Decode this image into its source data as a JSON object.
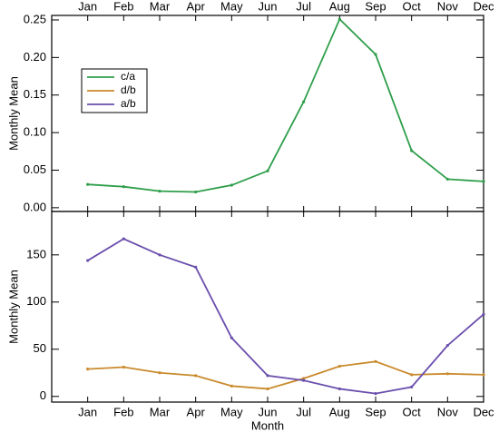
{
  "chart_data": [
    {
      "type": "line",
      "ylabel": "Monthly Mean",
      "categories": [
        "Jan",
        "Feb",
        "Mar",
        "Apr",
        "May",
        "Jun",
        "Jul",
        "Aug",
        "Sep",
        "Oct",
        "Nov",
        "Dec"
      ],
      "ylim": [
        -0.005,
        0.256
      ],
      "yticks": [
        {
          "value": 0,
          "label": "0.00"
        },
        0.05,
        {
          "value": 0.1,
          "label": "0.10"
        },
        0.15,
        {
          "value": 0.2,
          "label": "0.20"
        },
        0.25
      ],
      "legend": "upper left",
      "series": [
        {
          "name": "c/a",
          "color": "#2e9e4a",
          "values": [
            0.031,
            0.028,
            0.022,
            0.021,
            0.03,
            0.049,
            0.141,
            0.251,
            0.204,
            0.076,
            0.038,
            0.035
          ]
        }
      ]
    },
    {
      "type": "line",
      "ylabel": "Monthly Mean",
      "xlabel": "Month",
      "categories": [
        "Jan",
        "Feb",
        "Mar",
        "Apr",
        "May",
        "Jun",
        "Jul",
        "Aug",
        "Sep",
        "Oct",
        "Nov",
        "Dec"
      ],
      "ylim": [
        -6,
        196
      ],
      "yticks": [
        0,
        50,
        100,
        150
      ],
      "series": [
        {
          "name": "d/b",
          "color": "#c98a2c",
          "values": [
            29,
            31,
            25,
            22,
            11,
            8,
            19,
            32,
            37,
            23,
            24,
            23
          ]
        },
        {
          "name": "a/b",
          "color": "#6a4fad",
          "values": [
            144,
            167,
            150,
            137,
            62,
            22,
            17,
            8,
            3,
            10,
            54,
            87
          ]
        }
      ]
    }
  ]
}
